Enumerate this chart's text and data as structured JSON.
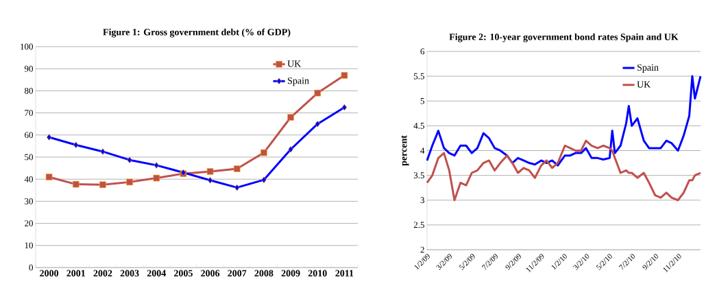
{
  "chart_data": [
    {
      "type": "line",
      "title": "Figure 1: Gross government debt (% of GDP)",
      "categories": [
        "2000",
        "2001",
        "2002",
        "2003",
        "2004",
        "2005",
        "2006",
        "2007",
        "2008",
        "2009",
        "2010",
        "2011"
      ],
      "series": [
        {
          "name": "UK",
          "color": "#c0504d",
          "marker": "square",
          "values": [
            41,
            37.7,
            37.5,
            38.7,
            40.5,
            42.5,
            43.5,
            44.7,
            52,
            68,
            79,
            87
          ]
        },
        {
          "name": "Spain",
          "color": "#0000ff",
          "marker": "diamond",
          "values": [
            59,
            55.5,
            52.5,
            48.7,
            46.3,
            43,
            39.5,
            36.2,
            39.7,
            53.5,
            65,
            72.5
          ]
        }
      ],
      "ylim": [
        0,
        100
      ],
      "yticks": [
        0,
        10,
        20,
        30,
        40,
        50,
        60,
        70,
        80,
        90,
        100
      ],
      "grid": "y",
      "legend": "top right"
    },
    {
      "type": "line",
      "title": "Figure 2: 10-year government bond rates Spain and UK",
      "ylabel": "percent",
      "x": [
        "2009-01-02",
        "2009-01-16",
        "2009-02-01",
        "2009-02-16",
        "2009-03-02",
        "2009-03-16",
        "2009-04-01",
        "2009-04-16",
        "2009-05-01",
        "2009-05-16",
        "2009-06-01",
        "2009-06-16",
        "2009-07-01",
        "2009-07-16",
        "2009-08-03",
        "2009-08-17",
        "2009-09-01",
        "2009-09-16",
        "2009-10-01",
        "2009-10-16",
        "2009-11-02",
        "2009-11-16",
        "2009-12-01",
        "2009-12-16",
        "2010-01-04",
        "2010-01-18",
        "2010-02-01",
        "2010-02-16",
        "2010-03-01",
        "2010-03-16",
        "2010-04-01",
        "2010-04-16",
        "2010-05-03",
        "2010-05-10",
        "2010-05-17",
        "2010-06-01",
        "2010-06-16",
        "2010-06-23",
        "2010-07-01",
        "2010-07-16",
        "2010-08-02",
        "2010-08-16",
        "2010-09-01",
        "2010-09-16",
        "2010-10-01",
        "2010-10-15",
        "2010-11-01",
        "2010-11-16",
        "2010-12-01",
        "2010-12-09",
        "2010-12-16",
        "2010-12-31"
      ],
      "series": [
        {
          "name": "Spain",
          "color": "#0000ff",
          "values": [
            3.8,
            4.1,
            4.4,
            4.05,
            3.95,
            3.9,
            4.1,
            4.1,
            3.95,
            4.05,
            4.35,
            4.25,
            4.05,
            4.0,
            3.9,
            3.75,
            3.85,
            3.8,
            3.75,
            3.72,
            3.8,
            3.75,
            3.8,
            3.7,
            3.9,
            3.9,
            3.95,
            3.95,
            4.05,
            3.85,
            3.85,
            3.82,
            3.85,
            4.4,
            3.95,
            4.1,
            4.55,
            4.9,
            4.5,
            4.65,
            4.2,
            4.05,
            4.05,
            4.05,
            4.2,
            4.15,
            4.0,
            4.3,
            4.7,
            5.5,
            5.05,
            5.5
          ]
        },
        {
          "name": "UK",
          "color": "#c0504d",
          "values": [
            3.35,
            3.5,
            3.85,
            3.95,
            3.6,
            3.0,
            3.35,
            3.3,
            3.55,
            3.6,
            3.75,
            3.8,
            3.6,
            3.75,
            3.9,
            3.75,
            3.55,
            3.65,
            3.6,
            3.45,
            3.7,
            3.8,
            3.65,
            3.75,
            4.1,
            4.05,
            4.0,
            4.0,
            4.2,
            4.1,
            4.05,
            4.1,
            4.05,
            4.0,
            3.85,
            3.55,
            3.6,
            3.55,
            3.55,
            3.45,
            3.55,
            3.35,
            3.1,
            3.05,
            3.15,
            3.05,
            3.0,
            3.15,
            3.4,
            3.4,
            3.5,
            3.55
          ]
        }
      ],
      "xlim": [
        "2009-01-02",
        "2010-12-31"
      ],
      "xticks": [
        {
          "value": "2009-01-02",
          "label": "1/2/09"
        },
        {
          "value": "2009-03-02",
          "label": "3/2/09"
        },
        {
          "value": "2009-05-02",
          "label": "5/2/09"
        },
        {
          "value": "2009-07-02",
          "label": "7/2/09"
        },
        {
          "value": "2009-09-02",
          "label": "9/2/09"
        },
        {
          "value": "2009-11-02",
          "label": "11/2/09"
        },
        {
          "value": "2010-01-02",
          "label": "1/2/10"
        },
        {
          "value": "2010-03-02",
          "label": "3/2/10"
        },
        {
          "value": "2010-05-02",
          "label": "5/2/10"
        },
        {
          "value": "2010-07-02",
          "label": "7/2/10"
        },
        {
          "value": "2010-09-02",
          "label": "9/2/10"
        },
        {
          "value": "2010-11-02",
          "label": "11/2/10"
        }
      ],
      "ylim": [
        2,
        6
      ],
      "yticks": [
        2,
        2.5,
        3,
        3.5,
        4,
        4.5,
        5,
        5.5,
        6
      ],
      "grid": "y",
      "legend": "top right",
      "marker": "none"
    }
  ]
}
